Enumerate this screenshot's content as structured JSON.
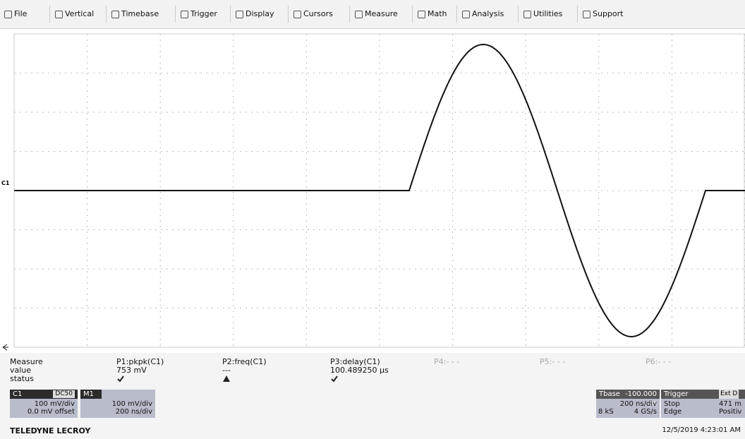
{
  "menu": [
    "File",
    "Vertical",
    "Timebase",
    "Trigger",
    "Display",
    "Cursors",
    "Measure",
    "Math",
    "Analysis",
    "Utilities",
    "Support"
  ],
  "trace_marker": "C1",
  "measure": {
    "header": "Measure",
    "row_labels": [
      "value",
      "status"
    ],
    "params": [
      {
        "name": "P1:pkpk(C1)",
        "value": "753 mV"
      },
      {
        "name": "P2:freq(C1)",
        "value": "---"
      },
      {
        "name": "P3:delay(C1)",
        "value": "100.489250 µs"
      },
      {
        "name": "P4:- - -"
      },
      {
        "name": "P5:- - -"
      },
      {
        "name": "P6:- - -"
      }
    ]
  },
  "channels": {
    "c1": {
      "label": "C1",
      "coupling": "DC50",
      "scale": "100 mV/div",
      "offset": "0.0 mV offset"
    },
    "m1": {
      "label": "M1",
      "scale": "100 mV/div",
      "timebase": "200 ns/div"
    }
  },
  "timebase": {
    "label": "Tbase",
    "delay": "-100.000 µs",
    "scale": "200 ns/div",
    "samples": "8 kS",
    "rate": "4 GS/s"
  },
  "trigger": {
    "label": "Trigger",
    "source": "Ext D",
    "mode": "Stop",
    "level": "471 m",
    "type": "Edge",
    "slope": "Positiv"
  },
  "footer": {
    "brand": "TELEDYNE LECROY",
    "datetime": "12/5/2019 4:23:01 AM"
  }
}
